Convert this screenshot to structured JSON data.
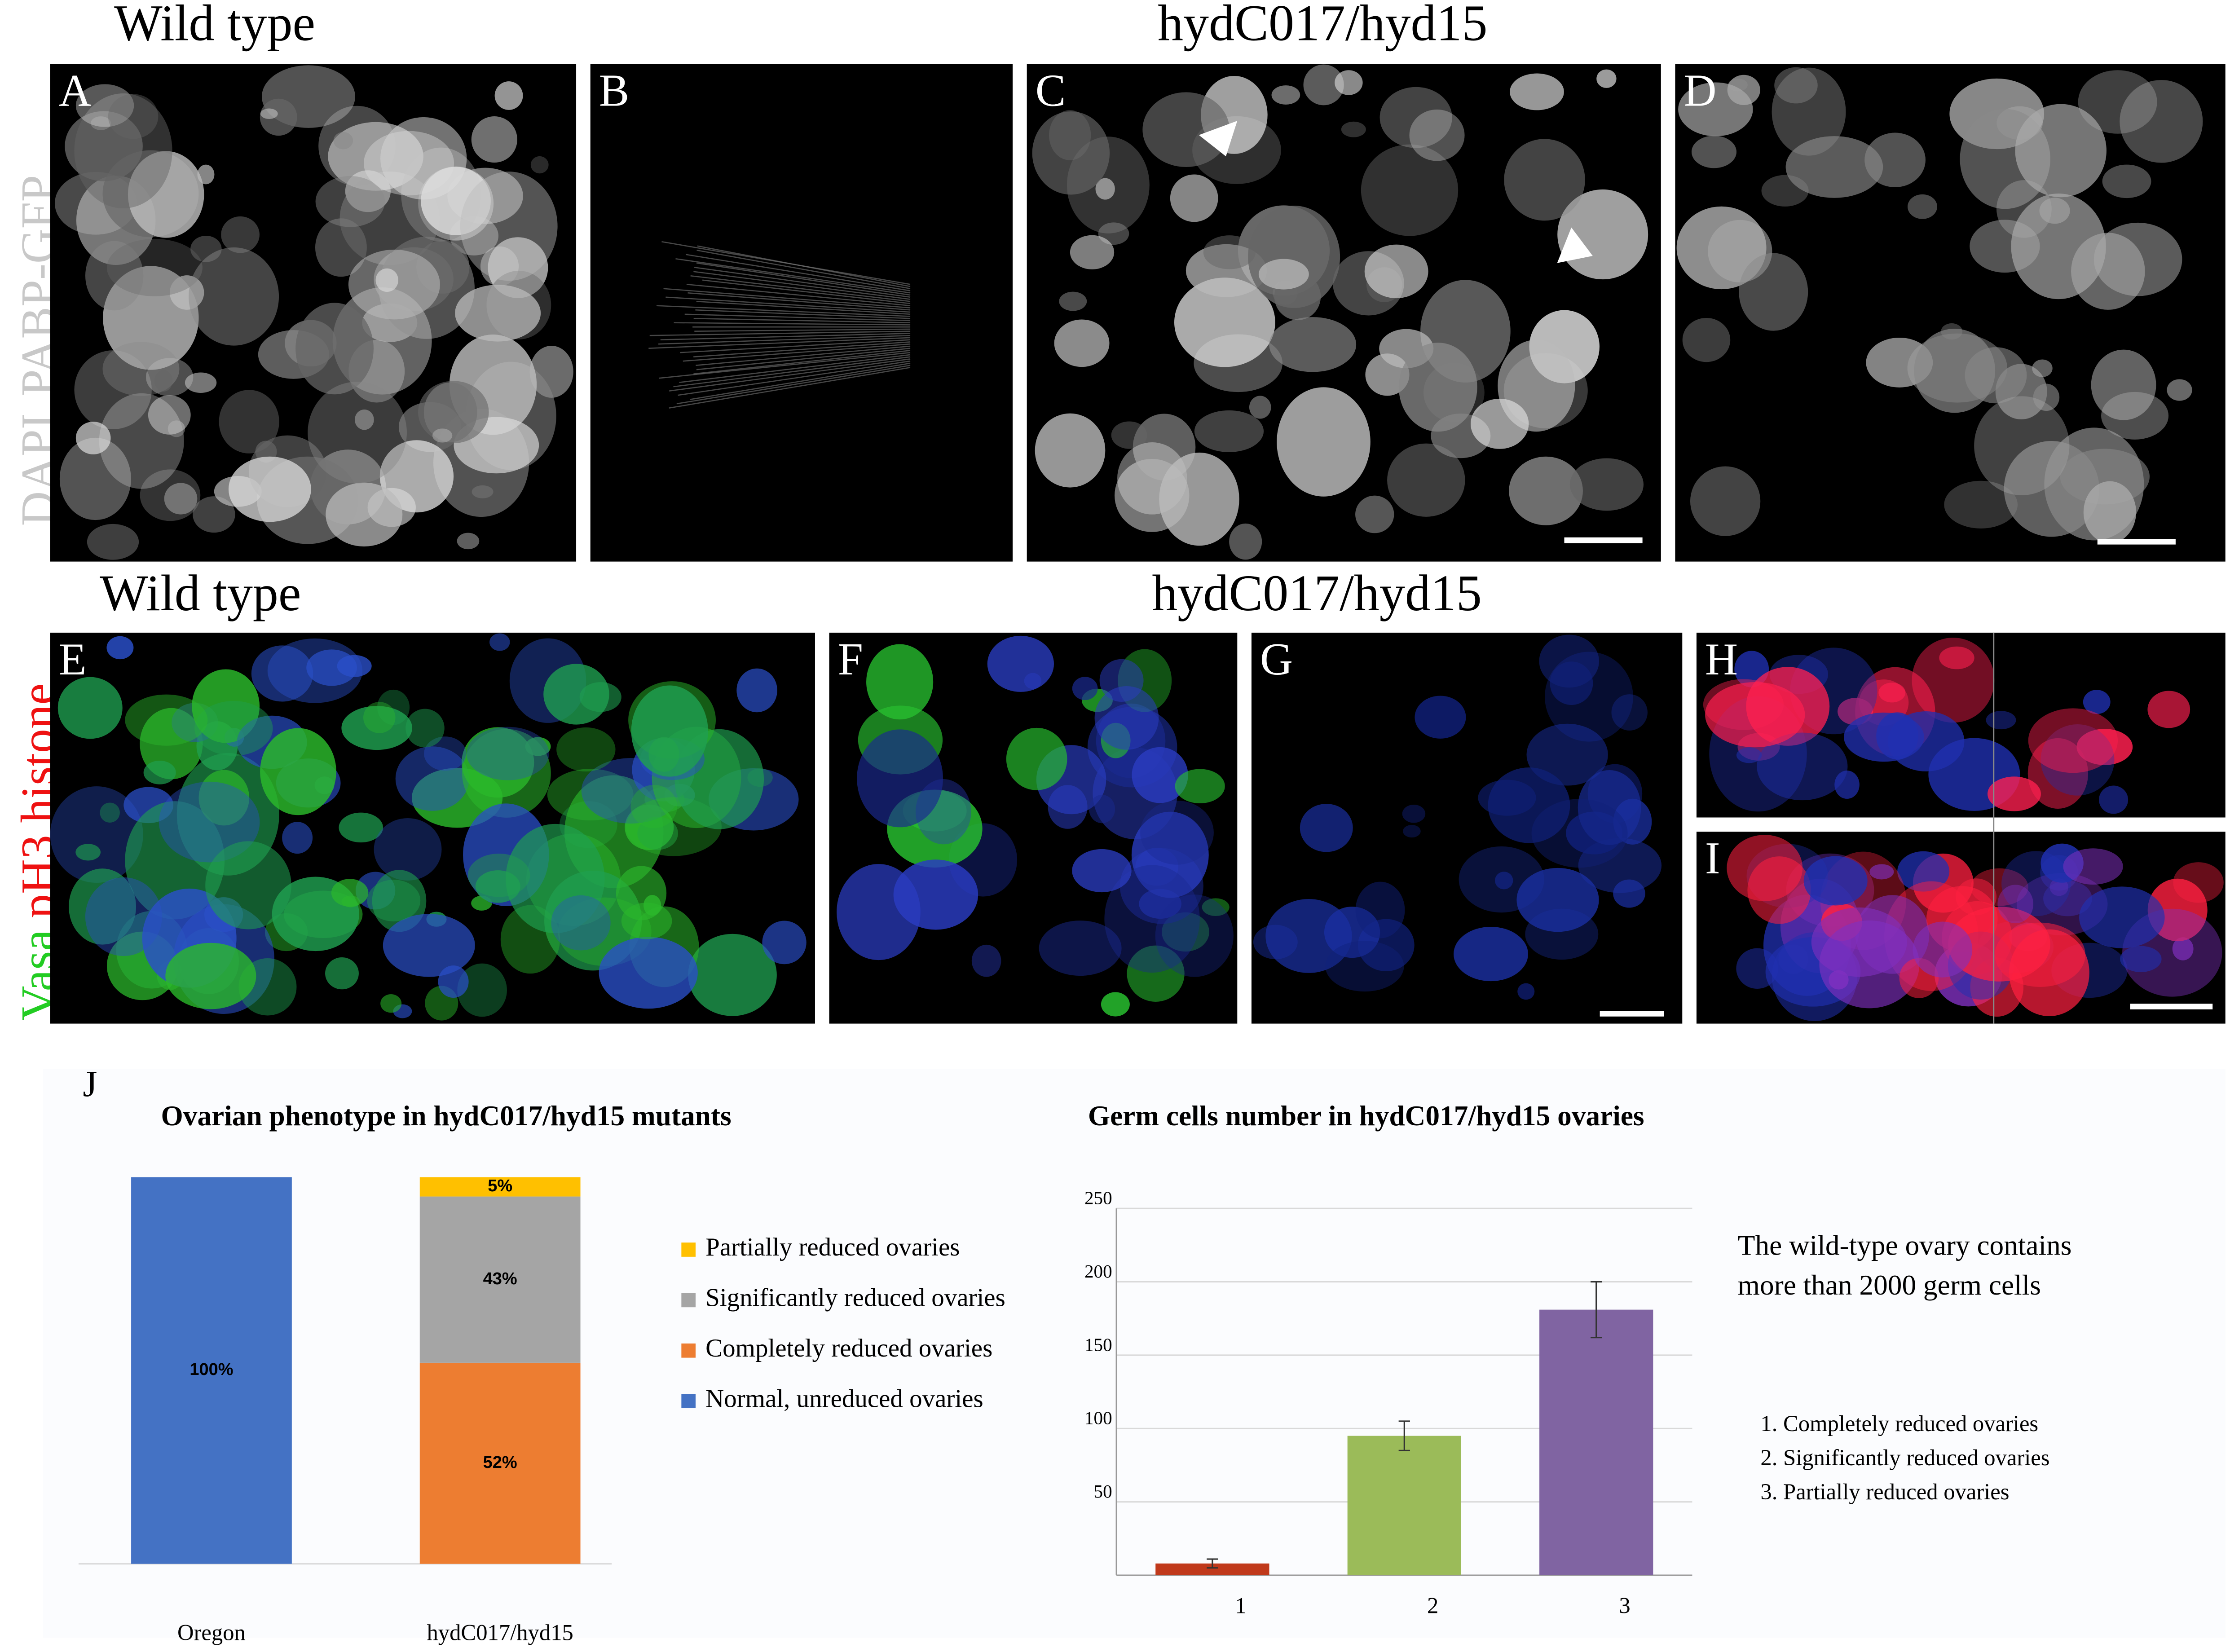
{
  "panels": {
    "headers": [
      "Wild type",
      "hydC017/hyd15",
      "Wild type",
      "hydC017/hyd15"
    ],
    "row1_stain": [
      "DAPI",
      "PABP-GFP"
    ],
    "row2_stain": [
      "Vasa",
      "pH3 histone"
    ],
    "letters": [
      "A",
      "B",
      "C",
      "D",
      "E",
      "F",
      "G",
      "H",
      "I",
      "J"
    ]
  },
  "chart_data": [
    {
      "type": "stacked_bar",
      "title": "Ovarian phenotype in  hydC017/hyd15 mutants",
      "categories": [
        "Oregon",
        "hydC017/hyd15"
      ],
      "ylim": [
        0,
        100
      ],
      "series": [
        {
          "name": "Partially reduced ovaries",
          "color": "#ffc000",
          "values": [
            0,
            5
          ],
          "value_labels": [
            null,
            "5%"
          ]
        },
        {
          "name": "Significantly reduced ovaries",
          "color": "#a5a5a5",
          "values": [
            0,
            43
          ],
          "value_labels": [
            null,
            "43%"
          ]
        },
        {
          "name": "Completely reduced ovaries",
          "color": "#ed7d31",
          "values": [
            0,
            52
          ],
          "value_labels": [
            null,
            "52%"
          ]
        },
        {
          "name": "Normal, unreduced ovaries",
          "color": "#4472c4",
          "values": [
            100,
            0
          ],
          "value_labels": [
            "100%",
            null
          ]
        }
      ]
    },
    {
      "type": "bar",
      "title": "Germ cells number in hydC017/hyd15 ovaries",
      "categories": [
        "1",
        "2",
        "3"
      ],
      "values": [
        8,
        95,
        181
      ],
      "errors": [
        3,
        10,
        19
      ],
      "colors": [
        "#c0391b",
        "#9bbb59",
        "#8064a2"
      ],
      "ylim": [
        0,
        250
      ],
      "yticks": [
        50,
        100,
        150,
        200,
        250
      ],
      "grid": true
    }
  ],
  "notes": {
    "wild_type": [
      "The wild-type ovary contains",
      "more than 2000 germ cells"
    ],
    "key": [
      "1. Completely reduced ovaries",
      "2. Significantly reduced ovaries",
      "3. Partially reduced ovaries"
    ]
  }
}
